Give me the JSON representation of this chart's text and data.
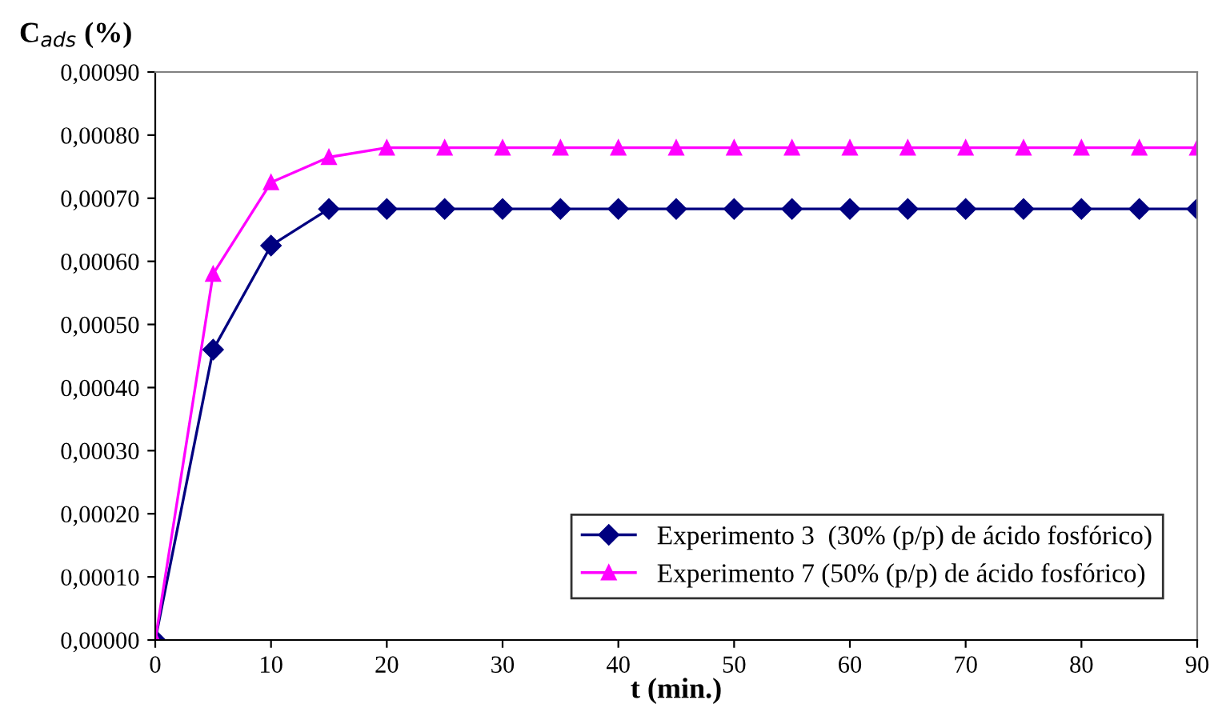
{
  "chart_data": {
    "type": "line",
    "xlabel": "t (min.)",
    "ylabel": "C$_{ads}$ (%)",
    "x": [
      0,
      5,
      10,
      15,
      20,
      25,
      30,
      35,
      40,
      45,
      50,
      55,
      60,
      65,
      70,
      75,
      80,
      85,
      90
    ],
    "series": [
      {
        "name": "Experimento 3  (30% (p/p) de ácido fosfórico)",
        "color": "#000080",
        "marker": "diamond",
        "values": [
          0.0,
          0.00046,
          0.000625,
          0.000683,
          0.000683,
          0.000683,
          0.000683,
          0.000683,
          0.000683,
          0.000683,
          0.000683,
          0.000683,
          0.000683,
          0.000683,
          0.000683,
          0.000683,
          0.000683,
          0.000683,
          0.000683
        ]
      },
      {
        "name": "Experimento 7 (50% (p/p) de ácido fosfórico)",
        "color": "#ff00ff",
        "marker": "triangle",
        "values": [
          0.0,
          0.00058,
          0.000725,
          0.000765,
          0.00078,
          0.00078,
          0.00078,
          0.00078,
          0.00078,
          0.00078,
          0.00078,
          0.00078,
          0.00078,
          0.00078,
          0.00078,
          0.00078,
          0.00078,
          0.00078,
          0.00078
        ]
      }
    ],
    "xlim": [
      0,
      90
    ],
    "xticks": [
      0,
      10,
      20,
      30,
      40,
      50,
      60,
      70,
      80,
      90
    ],
    "ylim": [
      0,
      0.0009
    ],
    "yticks": [
      {
        "value": 0,
        "label": "0,00000"
      },
      {
        "value": 0.0001,
        "label": "0,00010"
      },
      {
        "value": 0.0002,
        "label": "0,00020"
      },
      {
        "value": 0.0003,
        "label": "0,00030"
      },
      {
        "value": 0.0004,
        "label": "0,00040"
      },
      {
        "value": 0.0005,
        "label": "0,00050"
      },
      {
        "value": 0.0006,
        "label": "0,00060"
      },
      {
        "value": 0.0007,
        "label": "0,00070"
      },
      {
        "value": 0.0008,
        "label": "0,00080"
      },
      {
        "value": 0.0009,
        "label": "0,00090"
      }
    ],
    "grid": false,
    "legend": "bottom right",
    "line_style": "solid"
  }
}
